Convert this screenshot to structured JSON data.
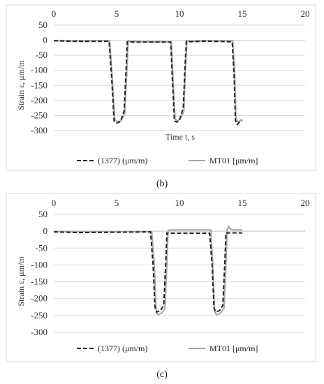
{
  "chart_data": [
    {
      "type": "line",
      "xlabel": "Time t, s",
      "ylabel": "Strain ε, μm/m",
      "xlim": [
        0,
        20
      ],
      "ylim": [
        -300,
        50
      ],
      "x_ticks": [
        "0",
        "5",
        "10",
        "15",
        "20"
      ],
      "y_ticks": [
        "50",
        "0",
        "-50",
        "-100",
        "-150",
        "-200",
        "-250",
        "-300"
      ],
      "grid": "horizontal",
      "legend_position": "bottom",
      "caption": "(b)",
      "series": [
        {
          "name": "(1377)  (μm/m)",
          "style": "dashed",
          "color": "#222222",
          "points": [
            [
              0,
              -2
            ],
            [
              2,
              -4
            ],
            [
              4,
              -4
            ],
            [
              4.4,
              -3
            ],
            [
              4.6,
              -120
            ],
            [
              4.8,
              -268
            ],
            [
              5.0,
              -275
            ],
            [
              5.3,
              -270
            ],
            [
              5.6,
              -235
            ],
            [
              5.75,
              -100
            ],
            [
              5.85,
              -5
            ],
            [
              6.0,
              -6
            ],
            [
              7,
              -6
            ],
            [
              9,
              -6
            ],
            [
              9.3,
              -6
            ],
            [
              9.45,
              -140
            ],
            [
              9.6,
              -268
            ],
            [
              9.8,
              -272
            ],
            [
              10.0,
              -265
            ],
            [
              10.3,
              -225
            ],
            [
              10.45,
              -80
            ],
            [
              10.55,
              -4
            ],
            [
              11,
              -5
            ],
            [
              12,
              -3
            ],
            [
              14,
              -5
            ],
            [
              14.2,
              -6
            ],
            [
              14.35,
              -120
            ],
            [
              14.45,
              -265
            ],
            [
              14.6,
              -280
            ],
            [
              14.8,
              -270
            ],
            [
              15.0,
              -268
            ]
          ]
        },
        {
          "name": "MT01 [μm/m]",
          "style": "solid",
          "color": "#a6a6a6",
          "points": [
            [
              0,
              -1
            ],
            [
              2,
              -2
            ],
            [
              4,
              -1
            ],
            [
              4.45,
              -2
            ],
            [
              4.65,
              -120
            ],
            [
              4.85,
              -263
            ],
            [
              5.05,
              -270
            ],
            [
              5.35,
              -268
            ],
            [
              5.65,
              -245
            ],
            [
              5.82,
              -100
            ],
            [
              5.92,
              -3
            ],
            [
              6.1,
              -4
            ],
            [
              7,
              -5
            ],
            [
              9,
              -5
            ],
            [
              9.35,
              -5
            ],
            [
              9.5,
              -140
            ],
            [
              9.65,
              -262
            ],
            [
              9.85,
              -268
            ],
            [
              10.05,
              -262
            ],
            [
              10.35,
              -238
            ],
            [
              10.5,
              -80
            ],
            [
              10.6,
              -3
            ],
            [
              11,
              -4
            ],
            [
              12,
              -2
            ],
            [
              14,
              -2
            ],
            [
              14.25,
              -3
            ],
            [
              14.4,
              -120
            ],
            [
              14.5,
              -258
            ],
            [
              14.65,
              -272
            ],
            [
              14.85,
              -266
            ],
            [
              15.0,
              -263
            ]
          ]
        }
      ]
    },
    {
      "type": "line",
      "xlabel": "",
      "ylabel": "Strain ε, μm/m",
      "xlim": [
        0,
        20
      ],
      "ylim": [
        -300,
        50
      ],
      "x_ticks": [
        "0",
        "5",
        "10",
        "15",
        "20"
      ],
      "y_ticks": [
        "50",
        "0",
        "-50",
        "-100",
        "-150",
        "-200",
        "-250",
        "-300"
      ],
      "grid": "horizontal",
      "legend_position": "bottom",
      "caption": "(c)",
      "series": [
        {
          "name": "(1377) (μm/m)",
          "style": "dashed",
          "color": "#222222",
          "points": [
            [
              0,
              -2
            ],
            [
              2,
              -4
            ],
            [
              5,
              -3
            ],
            [
              7.7,
              -2
            ],
            [
              7.9,
              -100
            ],
            [
              8.05,
              -225
            ],
            [
              8.2,
              -240
            ],
            [
              8.5,
              -235
            ],
            [
              8.75,
              -220
            ],
            [
              8.9,
              -100
            ],
            [
              9.0,
              -5
            ],
            [
              9.3,
              -6
            ],
            [
              10,
              -6
            ],
            [
              12.4,
              -6
            ],
            [
              12.6,
              -100
            ],
            [
              12.75,
              -228
            ],
            [
              12.9,
              -240
            ],
            [
              13.2,
              -235
            ],
            [
              13.45,
              -220
            ],
            [
              13.6,
              -100
            ],
            [
              13.7,
              -5
            ],
            [
              14,
              -5
            ],
            [
              15,
              -5
            ]
          ]
        },
        {
          "name": "MT01 [μm/m]",
          "style": "solid",
          "color": "#a6a6a6",
          "points": [
            [
              0,
              -1
            ],
            [
              2,
              -1
            ],
            [
              5,
              -1
            ],
            [
              7.8,
              -1
            ],
            [
              8.0,
              -100
            ],
            [
              8.15,
              -240
            ],
            [
              8.3,
              -248
            ],
            [
              8.6,
              -242
            ],
            [
              8.85,
              -230
            ],
            [
              9.0,
              -100
            ],
            [
              9.1,
              3
            ],
            [
              9.5,
              4
            ],
            [
              10,
              4
            ],
            [
              12.5,
              4
            ],
            [
              12.65,
              -100
            ],
            [
              12.8,
              -240
            ],
            [
              12.95,
              -248
            ],
            [
              13.25,
              -243
            ],
            [
              13.55,
              -228
            ],
            [
              13.7,
              -100
            ],
            [
              13.8,
              3
            ],
            [
              13.9,
              15
            ],
            [
              14.0,
              8
            ],
            [
              14.2,
              4
            ],
            [
              15,
              4
            ]
          ]
        }
      ]
    }
  ]
}
